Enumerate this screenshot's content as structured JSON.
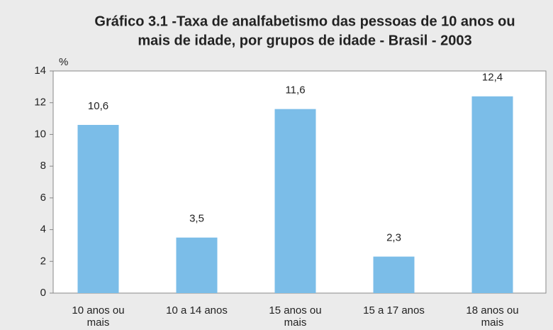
{
  "chart_data": {
    "type": "bar",
    "title": [
      "Gráfico 3.1 -Taxa de analfabetismo das pessoas de 10 anos ou",
      "mais de idade, por grupos de idade - Brasil - 2003"
    ],
    "y_label": "%",
    "categories": [
      "10 anos ou mais",
      "10 a 14 anos",
      "15 anos ou mais",
      "15 a 17 anos",
      "18 anos ou mais"
    ],
    "values": [
      10.6,
      3.5,
      11.6,
      2.3,
      12.4
    ],
    "value_labels": [
      "10,6",
      "3,5",
      "11,6",
      "2,3",
      "12,4"
    ],
    "color": "#7bbde8",
    "ylim": [
      0,
      14
    ],
    "yticks": [
      0,
      2,
      4,
      6,
      8,
      10,
      12,
      14
    ],
    "grid": false
  }
}
